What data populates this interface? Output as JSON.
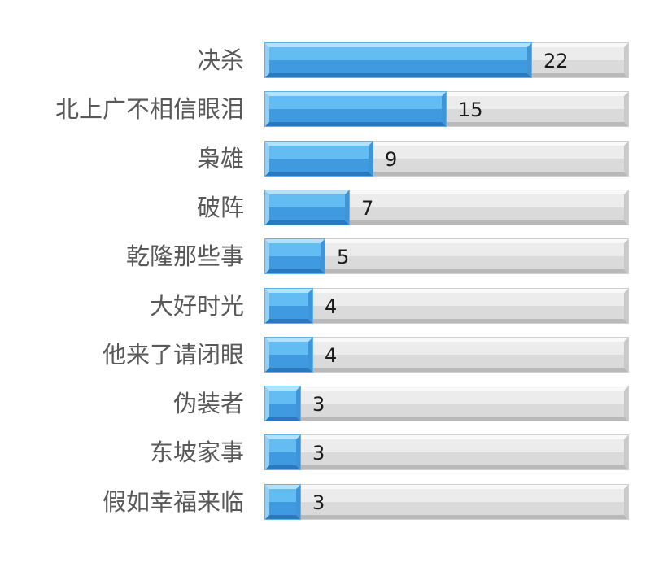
{
  "chart_data": {
    "type": "bar",
    "orientation": "horizontal",
    "title": "",
    "xlabel": "",
    "ylabel": "",
    "categories": [
      "决杀",
      "北上广不相信眼泪",
      "枭雄",
      "破阵",
      "乾隆那些事",
      "大好时光",
      "他来了请闭眼",
      "伪装者",
      "东坡家事",
      "假如幸福来临"
    ],
    "values": [
      22,
      15,
      9,
      7,
      5,
      4,
      4,
      3,
      3,
      3
    ],
    "xlim": [
      0,
      30
    ],
    "grid": false,
    "legend": "none",
    "data_labels": true,
    "colors": {
      "bar_light": "#9fd6fb",
      "bar_mid": "#55b2ee",
      "bar_dark": "#2e86cf",
      "track_light": "#f6f6f6",
      "track_mid": "#dcdcdc",
      "track_dark": "#c4c4c4"
    }
  }
}
